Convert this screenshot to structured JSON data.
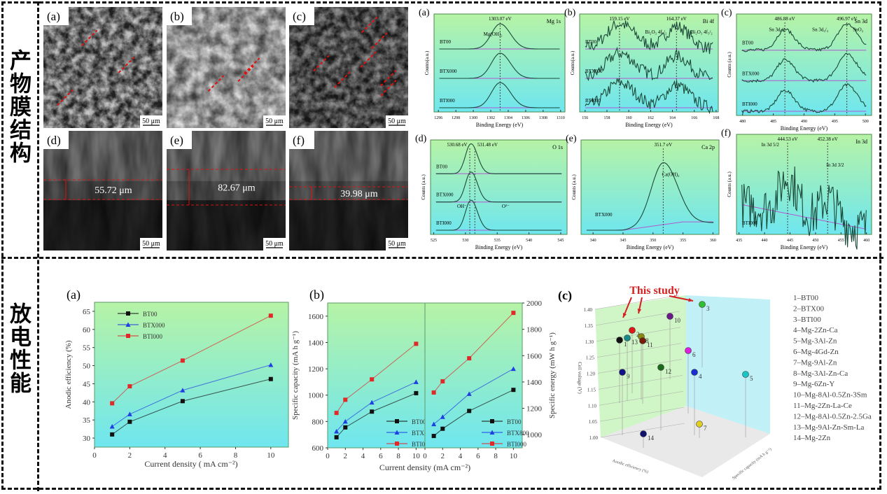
{
  "side_labels": {
    "structure": "产物膜结构",
    "performance": "放电性能"
  },
  "sem": {
    "panels": [
      {
        "label": "(a)",
        "scale": "50 μm"
      },
      {
        "label": "(b)",
        "scale": "50 μm"
      },
      {
        "label": "(c)",
        "scale": "50 μm"
      },
      {
        "label": "(d)",
        "scale": "50 μm",
        "thickness": "55.72 μm"
      },
      {
        "label": "(e)",
        "scale": "50 μm",
        "thickness": "82.67 μm"
      },
      {
        "label": "(f)",
        "scale": "50 μm",
        "thickness": "39.98 μm"
      }
    ]
  },
  "xps": {
    "x_label": "Binding Energy (eV)",
    "panels": [
      {
        "label": "(a)",
        "element": "Mg 1s",
        "y_label": "Counts(a.u.)",
        "xlim": [
          1295.5,
          1310.5
        ],
        "xticks": [
          1296,
          1298,
          1300,
          1302,
          1304,
          1306,
          1308,
          1310
        ],
        "samples": [
          "BT00",
          "BTX000",
          "BTI000"
        ],
        "peaks": [
          {
            "energy": 1303.07,
            "label": "1303.07 eV"
          }
        ],
        "annotations": [
          "Mg(OH)₂"
        ]
      },
      {
        "label": "(b)",
        "element": "Bi 4f",
        "y_label": "Counts(a.u.)",
        "xlim": [
          155.5,
          168.2
        ],
        "xticks": [
          156,
          158,
          160,
          162,
          164,
          166,
          168
        ],
        "samples": [
          "BT00",
          "BTX000",
          "BTI000"
        ],
        "peaks": [
          {
            "energy": 159.15,
            "label": "159.15 eV"
          },
          {
            "energy": 164.37,
            "label": "164.37 eV"
          }
        ],
        "annotations": [
          "Bi₂O₃ 4f₇/₂",
          "Bi₂O₃ 4f₅/₂"
        ]
      },
      {
        "label": "(c)",
        "element": "Sn 3d",
        "y_label": "Counts (a.u.)",
        "xlim": [
          479,
          501
        ],
        "xticks": [
          480,
          485,
          490,
          495,
          500
        ],
        "samples": [
          "BT00",
          "BTX000",
          "BTI000"
        ],
        "peaks": [
          {
            "energy": 486.88,
            "label": "486.88 eV"
          },
          {
            "energy": 496.97,
            "label": "496.97 eV"
          }
        ],
        "annotations": [
          "Sn 3d₅/₂",
          "Sn 3d₃/₂",
          "SnO₂"
        ]
      },
      {
        "label": "(d)",
        "element": "O 1s",
        "y_label": "Counts (a.u.)",
        "xlim": [
          524.5,
          546
        ],
        "xticks": [
          525,
          530,
          535,
          540,
          545
        ],
        "samples": [
          "BT00",
          "BTX000",
          "BTI000"
        ],
        "peaks": [
          {
            "energy": 530.68,
            "label": "530.68 eV"
          },
          {
            "energy": 531.48,
            "label": "531.48 eV"
          }
        ],
        "annotations": [
          "OH⁻",
          "O²⁻"
        ]
      },
      {
        "label": "(e)",
        "element": "Ca 2p",
        "y_label": "Counts (a.u.)",
        "xlim": [
          338,
          361
        ],
        "xticks": [
          340,
          345,
          350,
          355,
          360
        ],
        "samples": [
          "BTX000"
        ],
        "peaks": [
          {
            "energy": 351.7,
            "label": "351.7 eV"
          }
        ],
        "annotations": [
          "Ca(OH)₂"
        ]
      },
      {
        "label": "(f)",
        "element": "In 3d",
        "y_label": "Counts (a.u.)",
        "xlim": [
          434.5,
          461
        ],
        "xticks": [
          435,
          440,
          445,
          450,
          455,
          460
        ],
        "samples": [
          "BTI000"
        ],
        "peaks": [
          {
            "energy": 444.53,
            "label": "444.53 eV"
          },
          {
            "energy": 452.38,
            "label": "452.38 eV"
          }
        ],
        "annotations": [
          "In 3d 5/2",
          "In 3d 3/2"
        ]
      }
    ]
  },
  "colors": {
    "bg_top": "#b6f3a6",
    "bg_bottom": "#6fe6ef",
    "BT00": "#111111",
    "BTX": "#1f3fe0",
    "BTI": "#e02a2a",
    "highlight": "#d42020"
  },
  "chart_data": [
    {
      "type": "line",
      "label": "(a)",
      "xlabel": "Current density ( mA cm⁻²)",
      "ylabel": "Anodic efficiency (%)",
      "xlim": [
        0,
        11
      ],
      "ylim": [
        27.5,
        67.5
      ],
      "xticks": [
        0,
        2,
        4,
        6,
        8,
        10
      ],
      "yticks": [
        30,
        35,
        40,
        45,
        50,
        55,
        60,
        65
      ],
      "legend": "top-left",
      "x": [
        1,
        2,
        5,
        10
      ],
      "series": [
        {
          "name": "BT00",
          "marker": "square",
          "color": "#111111",
          "values": [
            31.0,
            34.5,
            40.2,
            46.3
          ]
        },
        {
          "name": "BTX000",
          "marker": "triangle",
          "color": "#1f3fe0",
          "values": [
            33.2,
            36.6,
            43.2,
            50.2
          ]
        },
        {
          "name": "BTI000",
          "marker": "square",
          "color": "#e02a2a",
          "values": [
            39.6,
            44.3,
            51.4,
            63.8
          ]
        }
      ]
    },
    {
      "type": "line",
      "label": "(b)",
      "xlabel": "Current density (mA cm⁻²)",
      "legend": "bottom-right",
      "panels": [
        {
          "ylabel": "Specific capacity (mA h g⁻¹)",
          "xlim": [
            0,
            11
          ],
          "ylim": [
            600,
            1700
          ],
          "xticks": [
            0,
            2,
            4,
            6,
            8,
            10
          ],
          "yticks": [
            600,
            800,
            1000,
            1200,
            1400,
            1600
          ],
          "x": [
            1,
            2,
            5,
            10
          ],
          "series": [
            {
              "name": "BT00",
              "marker": "square",
              "color": "#111111",
              "values": [
                680,
                755,
                875,
                1015
              ]
            },
            {
              "name": "BTX000",
              "marker": "triangle",
              "color": "#1f3fe0",
              "values": [
                725,
                800,
                945,
                1100
              ]
            },
            {
              "name": "BTI000",
              "marker": "square",
              "color": "#e02a2a",
              "values": [
                865,
                965,
                1120,
                1390
              ]
            }
          ]
        },
        {
          "ylabel": "Specific energy (mW h g⁻¹)",
          "xlim": [
            0,
            11
          ],
          "ylim": [
            900,
            2000
          ],
          "xticks": [
            0,
            2,
            4,
            6,
            8,
            10
          ],
          "yticks": [
            1000,
            1200,
            1400,
            1600,
            1800,
            2000
          ],
          "x": [
            1,
            2,
            5,
            10
          ],
          "series": [
            {
              "name": "BT00",
              "marker": "square",
              "color": "#111111",
              "values": [
                990,
                1045,
                1180,
                1340
              ]
            },
            {
              "name": "BTX800",
              "marker": "triangle",
              "color": "#1f3fe0",
              "values": [
                1080,
                1135,
                1310,
                1500
              ]
            },
            {
              "name": "BTI000",
              "marker": "square",
              "color": "#e02a2a",
              "values": [
                1320,
                1405,
                1580,
                1925
              ]
            }
          ]
        }
      ]
    },
    {
      "type": "scatter3d",
      "label": "(c)",
      "annotation": "This study",
      "zlabel": "Cell voltage (V)",
      "xlabel": "Anodic efficiency (%)",
      "ylabel": "Specific capacity (mA h g⁻¹)",
      "zlim": [
        1.0,
        1.4
      ],
      "zticks": [
        "1.00",
        "1.05",
        "1.10",
        "1.15",
        "1.20",
        "1.25",
        "1.30",
        "1.35",
        "1.40"
      ],
      "legend": "right",
      "points": [
        {
          "id": 1,
          "name": "1–BT00",
          "color": "#111111",
          "cell_voltage": 1.31
        },
        {
          "id": 2,
          "name": "2–BTX00",
          "color": "#e01818",
          "cell_voltage": 1.34
        },
        {
          "id": 3,
          "name": "3–BTI00",
          "color": "#2fbf2f",
          "cell_voltage": 1.4
        },
        {
          "id": 4,
          "name": "4–Mg-2Zn-Ca",
          "color": "#1a2fd0",
          "cell_voltage": 1.21
        },
        {
          "id": 5,
          "name": "5–Mg-3Al-Zn",
          "color": "#19c6c6",
          "cell_voltage": 1.2
        },
        {
          "id": 6,
          "name": "6–Mg-4Gd-Zn",
          "color": "#e01ee0",
          "cell_voltage": 1.28
        },
        {
          "id": 7,
          "name": "7–Mg-9Al-Zn",
          "color": "#e0d020",
          "cell_voltage": 1.05
        },
        {
          "id": 8,
          "name": "8–Mg-3Al-Zn-Ca",
          "color": "#8a8a10",
          "cell_voltage": 1.32
        },
        {
          "id": 9,
          "name": "9–Mg-6Zn-Y",
          "color": "#12128a",
          "cell_voltage": 1.21
        },
        {
          "id": 10,
          "name": "10–Mg-8Al-0.5Zn-3Sm",
          "color": "#6a1a8a",
          "cell_voltage": 1.38
        },
        {
          "id": 11,
          "name": "11–Mg-2Zn-La-Ce",
          "color": "#7a1a0a",
          "cell_voltage": 1.31
        },
        {
          "id": 12,
          "name": "12–Mg-8Al-0.5Zn-2.5Ga",
          "color": "#1a6a1a",
          "cell_voltage": 1.23
        },
        {
          "id": 13,
          "name": "13–Mg-9Al-Zn-Sm-La",
          "color": "#1a8a8a",
          "cell_voltage": 1.32
        },
        {
          "id": 14,
          "name": "14–Mg-2Zn",
          "color": "#101070",
          "cell_voltage": 1.02
        }
      ]
    }
  ]
}
